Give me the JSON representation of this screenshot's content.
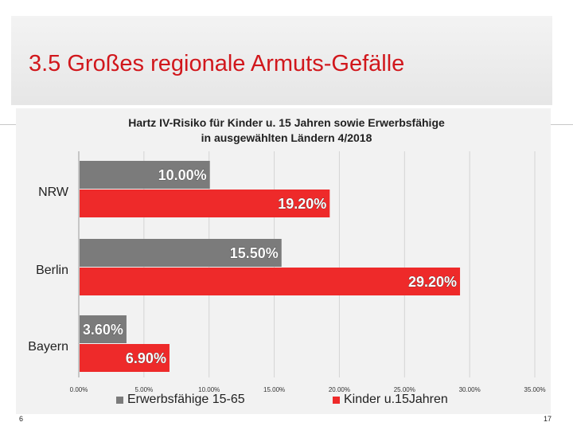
{
  "slide": {
    "title": "3.5 Großes regionale Armuts-Gefälle",
    "page_left": "6",
    "page_right": "17"
  },
  "colors": {
    "series_gray": "#7b7b7b",
    "series_red": "#ee2a2a",
    "title_red": "#d1171c"
  },
  "chart_data": {
    "type": "bar",
    "orientation": "horizontal",
    "title": "Hartz IV-Risiko für Kinder u. 15 Jahren sowie Erwerbsfähige",
    "subtitle": "in ausgewählten Ländern 4/2018",
    "categories": [
      "NRW",
      "Berlin",
      "Bayern"
    ],
    "series": [
      {
        "name": "Erwerbsfähige 15-65",
        "values": [
          10.0,
          15.5,
          3.6
        ],
        "labels": [
          "10.00%",
          "15.50%",
          "3.60%"
        ]
      },
      {
        "name": "Kinder u.15Jahren",
        "values": [
          19.2,
          29.2,
          6.9
        ],
        "labels": [
          "19.20%",
          "29.20%",
          "6.90%"
        ]
      }
    ],
    "xlim": [
      0,
      35
    ],
    "xticks": [
      "0.00%",
      "5.00%",
      "10.00%",
      "15.00%",
      "20.00%",
      "25.00%",
      "30.00%",
      "35.00%"
    ],
    "grid": true,
    "legend_position": "bottom"
  }
}
